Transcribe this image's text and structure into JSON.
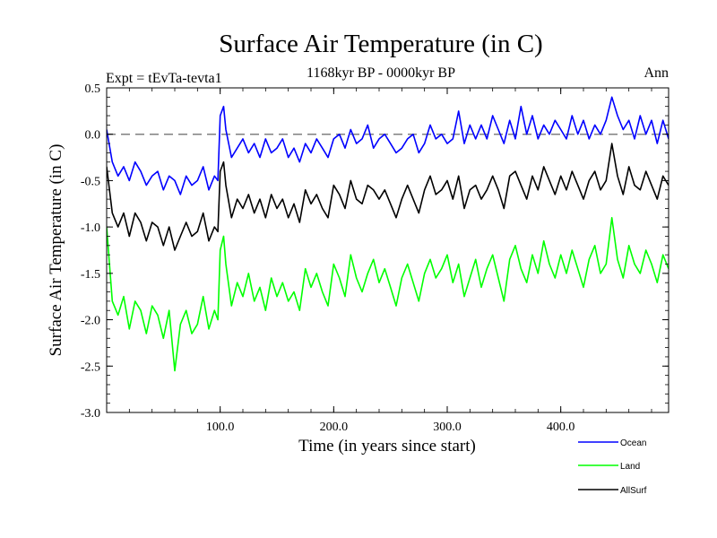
{
  "chart_data": {
    "type": "line",
    "title": "Surface Air Temperature (in C)",
    "subtitle": "1168kyr BP - 0000kyr BP",
    "left_label": "Expt = tEvTa-tevta1",
    "right_label": "Ann",
    "xlabel": "Time (in years since start)",
    "ylabel": "Surface Air Temperature (in C)",
    "xlim": [
      0,
      495
    ],
    "ylim": [
      -3.0,
      0.5
    ],
    "x_ticks": [
      100,
      200,
      300,
      400
    ],
    "x_tick_labels": [
      "100.0",
      "200.0",
      "300.0",
      "400.0"
    ],
    "y_ticks": [
      -3.0,
      -2.5,
      -2.0,
      -1.5,
      -1.0,
      -0.5,
      0.0,
      0.5
    ],
    "y_tick_labels": [
      "-3.0",
      "-2.5",
      "-2.0",
      "-1.5",
      "-1.0",
      "-0.5",
      "0.0",
      "0.5"
    ],
    "reference_line": 0.0,
    "legend_position": "bottom-right",
    "x": [
      0,
      5,
      10,
      15,
      20,
      25,
      30,
      35,
      40,
      45,
      50,
      55,
      60,
      65,
      70,
      75,
      80,
      85,
      90,
      95,
      98,
      100,
      103,
      105,
      110,
      115,
      120,
      125,
      130,
      135,
      140,
      145,
      150,
      155,
      160,
      165,
      170,
      175,
      180,
      185,
      190,
      195,
      200,
      205,
      210,
      215,
      220,
      225,
      230,
      235,
      240,
      245,
      250,
      255,
      260,
      265,
      270,
      275,
      280,
      285,
      290,
      295,
      300,
      305,
      310,
      315,
      320,
      325,
      330,
      335,
      340,
      345,
      350,
      355,
      360,
      365,
      370,
      375,
      380,
      385,
      390,
      395,
      400,
      405,
      410,
      415,
      420,
      425,
      430,
      435,
      440,
      445,
      450,
      455,
      460,
      465,
      470,
      475,
      480,
      485,
      490,
      495
    ],
    "series": [
      {
        "name": "Ocean",
        "color": "#0000ff",
        "values": [
          0.05,
          -0.3,
          -0.45,
          -0.35,
          -0.5,
          -0.3,
          -0.4,
          -0.55,
          -0.45,
          -0.4,
          -0.6,
          -0.45,
          -0.5,
          -0.65,
          -0.45,
          -0.55,
          -0.5,
          -0.35,
          -0.6,
          -0.45,
          -0.5,
          0.2,
          0.3,
          0.05,
          -0.25,
          -0.15,
          -0.05,
          -0.2,
          -0.1,
          -0.25,
          -0.05,
          -0.2,
          -0.15,
          -0.05,
          -0.25,
          -0.15,
          -0.3,
          -0.1,
          -0.2,
          -0.05,
          -0.15,
          -0.25,
          -0.05,
          0.0,
          -0.15,
          0.05,
          -0.1,
          -0.05,
          0.1,
          -0.15,
          -0.05,
          0.0,
          -0.1,
          -0.2,
          -0.15,
          -0.05,
          0.0,
          -0.2,
          -0.1,
          0.1,
          -0.05,
          0.0,
          -0.1,
          -0.05,
          0.25,
          -0.1,
          0.1,
          -0.05,
          0.1,
          -0.05,
          0.2,
          0.05,
          -0.1,
          0.15,
          -0.05,
          0.3,
          0.0,
          0.2,
          -0.05,
          0.1,
          0.0,
          0.15,
          0.05,
          -0.05,
          0.2,
          0.0,
          0.15,
          -0.05,
          0.1,
          0.0,
          0.15,
          0.4,
          0.2,
          0.05,
          0.15,
          -0.05,
          0.2,
          0.0,
          0.15,
          -0.1,
          0.15,
          -0.05
        ]
      },
      {
        "name": "Land",
        "color": "#00ff00",
        "values": [
          -1.0,
          -1.8,
          -1.95,
          -1.75,
          -2.1,
          -1.8,
          -1.9,
          -2.15,
          -1.85,
          -1.95,
          -2.2,
          -1.9,
          -2.55,
          -2.05,
          -1.9,
          -2.15,
          -2.05,
          -1.75,
          -2.1,
          -1.9,
          -2.0,
          -1.25,
          -1.1,
          -1.4,
          -1.85,
          -1.6,
          -1.75,
          -1.5,
          -1.8,
          -1.65,
          -1.9,
          -1.55,
          -1.75,
          -1.6,
          -1.8,
          -1.7,
          -1.9,
          -1.45,
          -1.65,
          -1.5,
          -1.7,
          -1.85,
          -1.4,
          -1.55,
          -1.75,
          -1.3,
          -1.55,
          -1.7,
          -1.5,
          -1.35,
          -1.6,
          -1.45,
          -1.65,
          -1.85,
          -1.55,
          -1.4,
          -1.6,
          -1.8,
          -1.5,
          -1.35,
          -1.55,
          -1.45,
          -1.3,
          -1.6,
          -1.4,
          -1.75,
          -1.55,
          -1.35,
          -1.65,
          -1.45,
          -1.3,
          -1.55,
          -1.8,
          -1.35,
          -1.2,
          -1.45,
          -1.6,
          -1.3,
          -1.5,
          -1.15,
          -1.4,
          -1.55,
          -1.3,
          -1.5,
          -1.25,
          -1.45,
          -1.65,
          -1.35,
          -1.2,
          -1.5,
          -1.4,
          -0.9,
          -1.35,
          -1.55,
          -1.2,
          -1.4,
          -1.5,
          -1.25,
          -1.4,
          -1.6,
          -1.3,
          -1.45
        ]
      },
      {
        "name": "AllSurf",
        "color": "#000000",
        "values": [
          -0.35,
          -0.85,
          -1.0,
          -0.85,
          -1.1,
          -0.85,
          -0.95,
          -1.15,
          -0.95,
          -1.0,
          -1.2,
          -1.0,
          -1.25,
          -1.1,
          -0.95,
          -1.1,
          -1.05,
          -0.85,
          -1.15,
          -1.0,
          -1.05,
          -0.4,
          -0.3,
          -0.55,
          -0.9,
          -0.7,
          -0.8,
          -0.65,
          -0.85,
          -0.7,
          -0.9,
          -0.65,
          -0.8,
          -0.7,
          -0.9,
          -0.75,
          -0.95,
          -0.6,
          -0.75,
          -0.65,
          -0.8,
          -0.9,
          -0.55,
          -0.65,
          -0.8,
          -0.5,
          -0.7,
          -0.75,
          -0.55,
          -0.6,
          -0.7,
          -0.6,
          -0.75,
          -0.9,
          -0.7,
          -0.55,
          -0.7,
          -0.85,
          -0.6,
          -0.45,
          -0.65,
          -0.6,
          -0.5,
          -0.7,
          -0.45,
          -0.8,
          -0.6,
          -0.55,
          -0.7,
          -0.6,
          -0.45,
          -0.6,
          -0.8,
          -0.45,
          -0.4,
          -0.55,
          -0.7,
          -0.45,
          -0.6,
          -0.35,
          -0.5,
          -0.65,
          -0.45,
          -0.6,
          -0.4,
          -0.55,
          -0.7,
          -0.5,
          -0.4,
          -0.6,
          -0.5,
          -0.1,
          -0.45,
          -0.65,
          -0.35,
          -0.55,
          -0.6,
          -0.4,
          -0.55,
          -0.7,
          -0.45,
          -0.55
        ]
      }
    ]
  }
}
